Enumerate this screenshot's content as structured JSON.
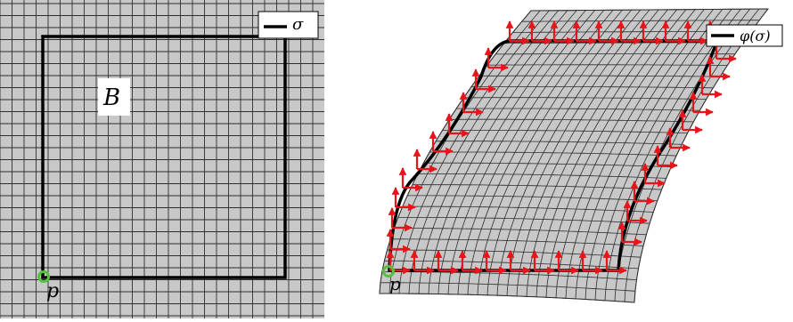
{
  "left_panel": {
    "legend_label": "σ",
    "region_label": "B",
    "point_label": "p"
  },
  "right_panel": {
    "legend_label": "φ(σ)",
    "point_label": "p"
  },
  "colors": {
    "grid_fill": "#c8c8c8",
    "grid_line": "#2e2e2e",
    "curve": "#000000",
    "arrow": "#e8141a",
    "point_outline": "#56c13c"
  }
}
